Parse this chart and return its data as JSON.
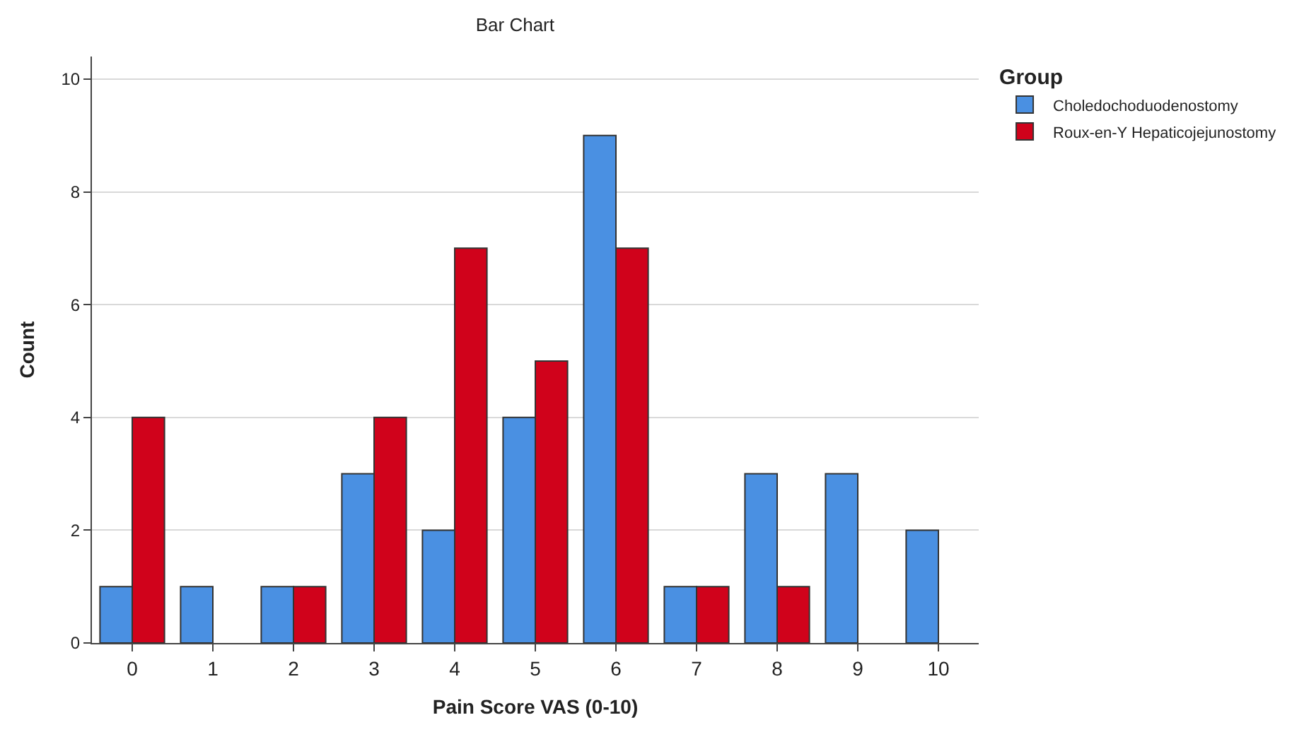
{
  "chart_data": {
    "type": "bar",
    "title": "Bar Chart",
    "xlabel": "Pain Score VAS (0-10)",
    "ylabel": "Count",
    "legend_title": "Group",
    "categories": [
      "0",
      "1",
      "2",
      "3",
      "4",
      "5",
      "6",
      "7",
      "8",
      "9",
      "10"
    ],
    "series": [
      {
        "name": "Choledochoduodenostomy",
        "color": "#4a90e2",
        "values": [
          1,
          1,
          1,
          3,
          2,
          4,
          9,
          1,
          3,
          3,
          2
        ]
      },
      {
        "name": "Roux-en-Y Hepaticojejunostomy",
        "color": "#d0021b",
        "values": [
          4,
          null,
          1,
          4,
          7,
          5,
          7,
          1,
          1,
          null,
          null
        ]
      }
    ],
    "ylim": [
      0,
      10.4
    ],
    "yticks": [
      0,
      2,
      4,
      6,
      8,
      10
    ],
    "grid": "y",
    "legend": "top right"
  }
}
